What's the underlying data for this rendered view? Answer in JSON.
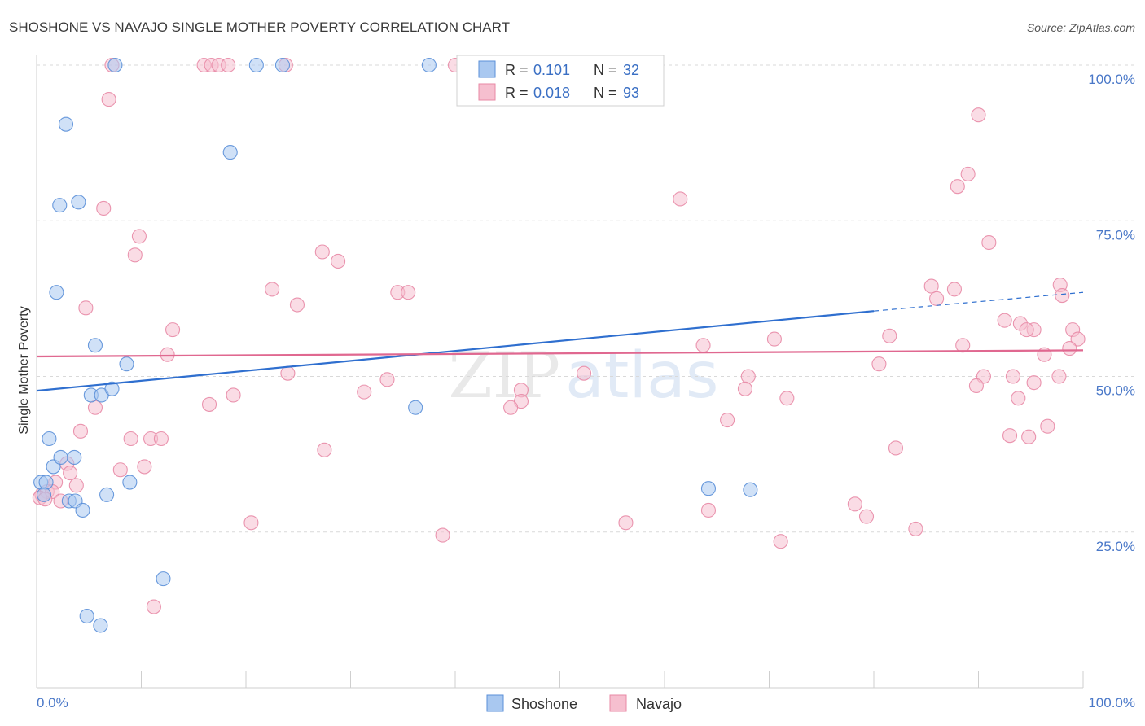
{
  "chart_data": {
    "type": "scatter",
    "title": "SHOSHONE VS NAVAJO SINGLE MOTHER POVERTY CORRELATION CHART",
    "source": "Source: ZipAtlas.com",
    "xlabel": "",
    "ylabel": "Single Mother Poverty",
    "xlim": [
      0,
      100
    ],
    "ylim": [
      0,
      100
    ],
    "x_tick_labels": [
      "0.0%",
      "100.0%"
    ],
    "y_ticks": [
      25,
      50,
      75,
      100
    ],
    "y_tick_labels": [
      "25.0%",
      "50.0%",
      "75.0%",
      "100.0%"
    ],
    "grid": true,
    "watermark": "ZIPatlas",
    "legend": {
      "r_label": "R =",
      "n_label": "N =",
      "entries": [
        {
          "name": "Shoshone",
          "r": "0.101",
          "n": "32"
        },
        {
          "name": "Navajo",
          "r": "0.018",
          "n": "93"
        }
      ]
    },
    "colors": {
      "shoshone_fill": "#a9c8f0",
      "shoshone_stroke": "#5a8fd8",
      "shoshone_line": "#2f6fcf",
      "navajo_fill": "#f6bfcf",
      "navajo_stroke": "#e889a6",
      "navajo_line": "#e06890"
    },
    "series": [
      {
        "name": "Shoshone",
        "trend": {
          "x_start": 0,
          "y_start": 47.7,
          "x_solid_end": 80,
          "y_solid_end": 60.5,
          "x_end": 100,
          "y_end": 63.5
        },
        "points": [
          [
            7.5,
            100
          ],
          [
            21,
            100
          ],
          [
            23.5,
            100
          ],
          [
            37.5,
            100
          ],
          [
            2.8,
            90.5
          ],
          [
            18.5,
            86
          ],
          [
            2.2,
            77.5
          ],
          [
            4,
            78
          ],
          [
            1.9,
            63.5
          ],
          [
            5.6,
            55
          ],
          [
            8.6,
            52
          ],
          [
            5.2,
            47
          ],
          [
            6.2,
            47
          ],
          [
            7.2,
            48
          ],
          [
            36.2,
            45
          ],
          [
            1.2,
            40
          ],
          [
            1.6,
            35.5
          ],
          [
            2.3,
            37
          ],
          [
            3.6,
            37
          ],
          [
            0.4,
            33
          ],
          [
            0.9,
            33
          ],
          [
            8.9,
            33
          ],
          [
            0.7,
            31
          ],
          [
            6.7,
            31
          ],
          [
            3.1,
            30
          ],
          [
            3.7,
            30
          ],
          [
            4.4,
            28.5
          ],
          [
            12.1,
            17.5
          ],
          [
            4.8,
            11.5
          ],
          [
            6.1,
            10
          ],
          [
            64.2,
            32
          ],
          [
            68.2,
            31.8
          ]
        ]
      },
      {
        "name": "Navajo",
        "trend": {
          "x_start": 0,
          "y_start": 53.2,
          "x_end": 100,
          "y_end": 54.2
        },
        "points": [
          [
            7.2,
            100
          ],
          [
            16,
            100
          ],
          [
            16.7,
            100
          ],
          [
            17.4,
            100
          ],
          [
            18.3,
            100
          ],
          [
            23.8,
            100
          ],
          [
            40,
            100
          ],
          [
            6.9,
            94.5
          ],
          [
            90,
            92
          ],
          [
            89,
            82.5
          ],
          [
            88,
            80.5
          ],
          [
            61.5,
            78.5
          ],
          [
            6.4,
            77
          ],
          [
            9.8,
            72.5
          ],
          [
            9.4,
            69.5
          ],
          [
            91,
            71.5
          ],
          [
            27.3,
            70
          ],
          [
            28.8,
            68.5
          ],
          [
            22.5,
            64
          ],
          [
            34.5,
            63.5
          ],
          [
            35.5,
            63.5
          ],
          [
            85.5,
            64.5
          ],
          [
            87.7,
            64
          ],
          [
            86,
            62.5
          ],
          [
            97.8,
            64.7
          ],
          [
            98,
            63
          ],
          [
            4.7,
            61
          ],
          [
            24.9,
            61.5
          ],
          [
            92.5,
            59
          ],
          [
            94,
            58.5
          ],
          [
            95.3,
            57.5
          ],
          [
            94.6,
            57.5
          ],
          [
            99,
            57.5
          ],
          [
            99.5,
            56
          ],
          [
            13,
            57.5
          ],
          [
            70.5,
            56
          ],
          [
            81.5,
            56.5
          ],
          [
            63.7,
            55
          ],
          [
            88.5,
            55
          ],
          [
            98.7,
            54.5
          ],
          [
            12.5,
            53.5
          ],
          [
            80.5,
            52
          ],
          [
            96.3,
            53.5
          ],
          [
            24,
            50.5
          ],
          [
            33.5,
            49.5
          ],
          [
            52.3,
            50.5
          ],
          [
            68,
            50
          ],
          [
            90.5,
            50
          ],
          [
            93.3,
            50
          ],
          [
            97.7,
            50
          ],
          [
            16.5,
            45.5
          ],
          [
            18.8,
            47
          ],
          [
            31.3,
            47.5
          ],
          [
            46.3,
            47.8
          ],
          [
            67.7,
            48
          ],
          [
            89.8,
            48.5
          ],
          [
            95.3,
            49
          ],
          [
            5.6,
            45
          ],
          [
            46.3,
            46
          ],
          [
            45.3,
            45
          ],
          [
            71.7,
            46.5
          ],
          [
            93.8,
            46.5
          ],
          [
            66,
            43
          ],
          [
            4.2,
            41.2
          ],
          [
            9,
            40
          ],
          [
            10.9,
            40
          ],
          [
            11.9,
            40
          ],
          [
            93,
            40.5
          ],
          [
            94.8,
            40.3
          ],
          [
            96.6,
            42
          ],
          [
            27.5,
            38.2
          ],
          [
            82.1,
            38.5
          ],
          [
            8,
            35
          ],
          [
            10.3,
            35.5
          ],
          [
            2.9,
            36
          ],
          [
            3.2,
            34.5
          ],
          [
            1.8,
            33
          ],
          [
            3.8,
            32.5
          ],
          [
            0.5,
            31
          ],
          [
            1,
            31.5
          ],
          [
            1.5,
            31.5
          ],
          [
            0.3,
            30.5
          ],
          [
            0.8,
            30.3
          ],
          [
            2.3,
            30
          ],
          [
            78.2,
            29.5
          ],
          [
            79.3,
            27.5
          ],
          [
            64.2,
            28.5
          ],
          [
            20.5,
            26.5
          ],
          [
            56.3,
            26.5
          ],
          [
            84,
            25.5
          ],
          [
            38.8,
            24.5
          ],
          [
            71.1,
            23.5
          ],
          [
            11.2,
            13
          ]
        ]
      }
    ]
  }
}
